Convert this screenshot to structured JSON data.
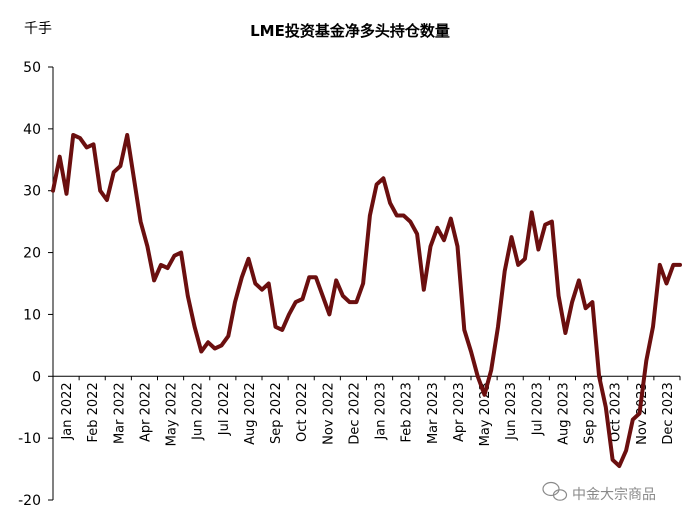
{
  "chart_data": {
    "type": "line",
    "title": "LME投资基金净多头持仓数量",
    "unit": "千手",
    "xlabel": "",
    "ylabel": "千手",
    "ylim": [
      -20,
      50
    ],
    "yticks": [
      -20,
      -10,
      0,
      10,
      20,
      30,
      40,
      50
    ],
    "grid": false,
    "legend": "none",
    "color": "#6b0f0f",
    "x_months": [
      "Jan 2022",
      "Feb 2022",
      "Mar 2022",
      "Apr 2022",
      "May 2022",
      "Jun 2022",
      "Jul 2022",
      "Aug 2022",
      "Sep 2022",
      "Oct 2022",
      "Nov 2022",
      "Dec 2022",
      "Jan 2023",
      "Feb 2023",
      "Mar 2023",
      "Apr 2023",
      "May 2023",
      "Jun 2023",
      "Jul 2023",
      "Aug 2023",
      "Sep 2023",
      "Oct 2023",
      "Nov 2023",
      "Dec 2023"
    ],
    "series": [
      {
        "name": "LME投资基金净多头持仓数量",
        "x": [
          0.0,
          0.25,
          0.5,
          0.75,
          1.0,
          1.25,
          1.5,
          1.75,
          2.0,
          2.25,
          2.5,
          2.75,
          3.0,
          3.25,
          3.5,
          3.75,
          4.0,
          4.25,
          4.5,
          4.75,
          5.0,
          5.25,
          5.5,
          5.75,
          6.0,
          6.25,
          6.5,
          6.75,
          7.0,
          7.25,
          7.5,
          7.75,
          8.0,
          8.25,
          8.5,
          8.75,
          9.0,
          9.25,
          9.5,
          9.75,
          10.0,
          10.25,
          10.5,
          10.75,
          11.0,
          11.25,
          11.5,
          11.75,
          12.0,
          12.25,
          12.5,
          12.75,
          13.0,
          13.25,
          13.5,
          13.75,
          14.0,
          14.25,
          14.5,
          14.75,
          15.0,
          15.25,
          15.5,
          15.75,
          16.0,
          16.25,
          16.5,
          16.75,
          17.0,
          17.25,
          17.5,
          17.75,
          18.0,
          18.25,
          18.5,
          18.75,
          19.0,
          19.25,
          19.5,
          19.75,
          20.0,
          20.25,
          20.5,
          20.75,
          21.0,
          21.25,
          21.5,
          21.75,
          22.0,
          22.25,
          22.5,
          22.75,
          23.0,
          23.25
        ],
        "values": [
          30,
          35.5,
          29.5,
          39,
          38.5,
          37,
          37.5,
          30,
          28.5,
          33,
          34,
          39,
          32,
          25,
          21,
          15.5,
          18,
          17.5,
          19.5,
          20,
          13,
          8,
          4,
          5.5,
          4.5,
          5,
          6.5,
          12,
          16,
          19,
          15,
          14,
          15,
          8,
          7.5,
          10,
          12,
          12.5,
          16,
          16,
          13,
          10,
          15.5,
          13,
          12,
          12,
          15,
          26,
          31,
          32,
          28,
          26,
          26,
          25,
          23,
          14,
          21,
          24,
          22,
          25.5,
          21,
          7.5,
          4,
          0,
          -3,
          1,
          8,
          17,
          22.5,
          18,
          19,
          26.5,
          20.5,
          24.5,
          25,
          13,
          7,
          12,
          15.5,
          11,
          12,
          0,
          -5,
          -13.5,
          -14.5,
          -12,
          -7,
          -6,
          2.5,
          8,
          18,
          15,
          18,
          18
        ]
      }
    ]
  },
  "watermark": "中金大宗商品"
}
